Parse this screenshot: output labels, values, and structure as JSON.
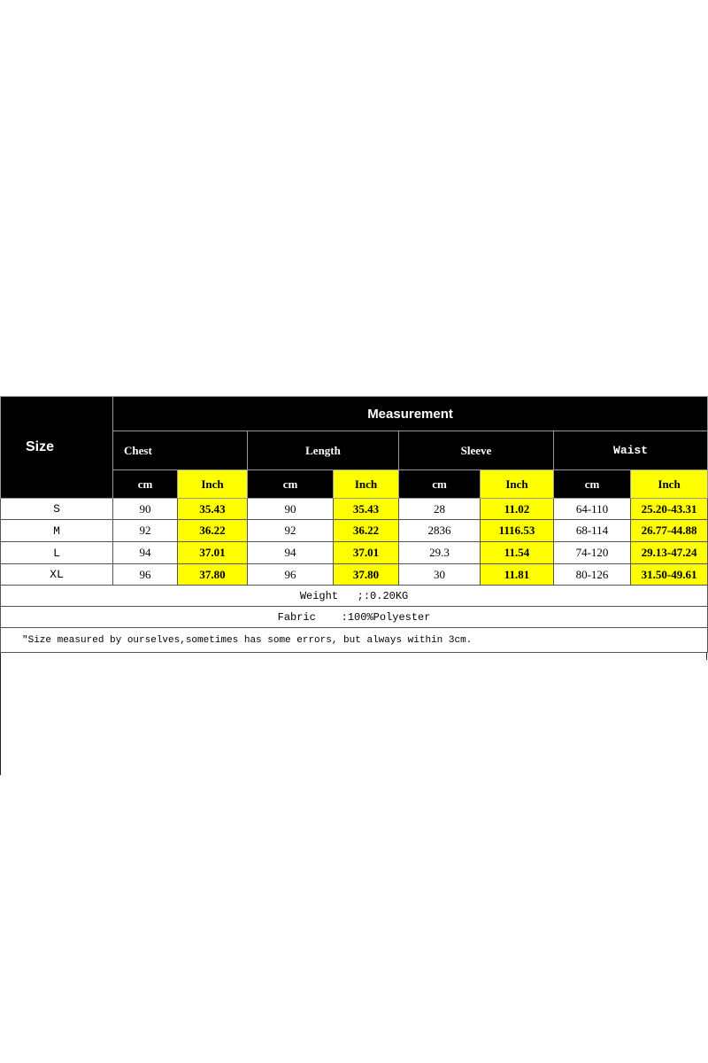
{
  "header": {
    "size_label": "Size",
    "measurement_label": "Measurement",
    "groups": [
      "Chest",
      "Length",
      "Sleeve",
      "Waist"
    ],
    "unit_cm": "cm",
    "unit_inch": "Inch"
  },
  "rows": [
    {
      "size": "S",
      "chest_cm": "90",
      "chest_in": "35.43",
      "length_cm": "90",
      "length_in": "35.43",
      "sleeve_cm": "28",
      "sleeve_in": "11.02",
      "waist_cm": "64-110",
      "waist_in": "25.20-43.31"
    },
    {
      "size": "M",
      "chest_cm": "92",
      "chest_in": "36.22",
      "length_cm": "92",
      "length_in": "36.22",
      "sleeve_cm": "2836",
      "sleeve_in": "1116.53",
      "waist_cm": "68-114",
      "waist_in": "26.77-44.88"
    },
    {
      "size": "L",
      "chest_cm": "94",
      "chest_in": "37.01",
      "length_cm": "94",
      "length_in": "37.01",
      "sleeve_cm": "29.3",
      "sleeve_in": "11.54",
      "waist_cm": "74-120",
      "waist_in": "29.13-47.24"
    },
    {
      "size": "XL",
      "chest_cm": "96",
      "chest_in": "37.80",
      "length_cm": "96",
      "length_in": "37.80",
      "sleeve_cm": "30",
      "sleeve_in": "11.81",
      "waist_cm": "80-126",
      "waist_in": "31.50-49.61"
    }
  ],
  "footer": {
    "weight": "Weight   ;:0.20KG",
    "fabric": "Fabric    :100%Polyester",
    "note": "\"Size measured by ourselves,sometimes has some errors, but always within 3cm."
  },
  "colors": {
    "header_bg": "#000000",
    "inch_bg": "#ffff00"
  }
}
